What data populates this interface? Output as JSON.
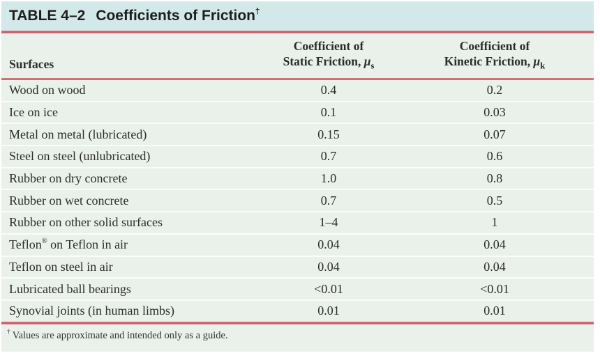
{
  "title": {
    "label": "TABLE 4–2",
    "subtitle": "Coefficients of Friction",
    "dagger": "†"
  },
  "header": {
    "surfaces": "Surfaces",
    "static": {
      "line1": "Coefficient of",
      "line2": "Static Friction,",
      "mu": "μ",
      "sub": "s"
    },
    "kinetic": {
      "line1": "Coefficient of",
      "line2": "Kinetic Friction,",
      "mu": "μ",
      "sub": "k"
    }
  },
  "rows": [
    {
      "pre": "Wood on wood",
      "sup": "",
      "post": "",
      "static": "0.4",
      "kinetic": "0.2"
    },
    {
      "pre": "Ice on ice",
      "sup": "",
      "post": "",
      "static": "0.1",
      "kinetic": "0.03"
    },
    {
      "pre": "Metal on metal (lubricated)",
      "sup": "",
      "post": "",
      "static": "0.15",
      "kinetic": "0.07"
    },
    {
      "pre": "Steel on steel (unlubricated)",
      "sup": "",
      "post": "",
      "static": "0.7",
      "kinetic": "0.6"
    },
    {
      "pre": "Rubber on dry concrete",
      "sup": "",
      "post": "",
      "static": "1.0",
      "kinetic": "0.8"
    },
    {
      "pre": "Rubber on wet concrete",
      "sup": "",
      "post": "",
      "static": "0.7",
      "kinetic": "0.5"
    },
    {
      "pre": "Rubber on other solid surfaces",
      "sup": "",
      "post": "",
      "static": "1–4",
      "kinetic": "1"
    },
    {
      "pre": "Teflon",
      "sup": "®",
      "post": " on Teflon in air",
      "static": "0.04",
      "kinetic": "0.04"
    },
    {
      "pre": "Teflon on steel in air",
      "sup": "",
      "post": "",
      "static": "0.04",
      "kinetic": "0.04"
    },
    {
      "pre": "Lubricated ball bearings",
      "sup": "",
      "post": "",
      "static": "<0.01",
      "kinetic": "<0.01"
    },
    {
      "pre": "Synovial joints (in human limbs)",
      "sup": "",
      "post": "",
      "static": "0.01",
      "kinetic": "0.01"
    }
  ],
  "footnote": {
    "dagger": "†",
    "text": "Values are approximate and intended only as a guide."
  },
  "colors": {
    "title_bg": "#d2e8e9",
    "body_bg": "#e9f1ea",
    "rule_red": "#c95d68",
    "separator": "#fafcfa"
  },
  "chart_data": {
    "type": "table",
    "title": "TABLE 4–2 Coefficients of Friction",
    "columns": [
      "Surfaces",
      "Coefficient of Static Friction, μs",
      "Coefficient of Kinetic Friction, μk"
    ],
    "rows": [
      [
        "Wood on wood",
        "0.4",
        "0.2"
      ],
      [
        "Ice on ice",
        "0.1",
        "0.03"
      ],
      [
        "Metal on metal (lubricated)",
        "0.15",
        "0.07"
      ],
      [
        "Steel on steel (unlubricated)",
        "0.7",
        "0.6"
      ],
      [
        "Rubber on dry concrete",
        "1.0",
        "0.8"
      ],
      [
        "Rubber on wet concrete",
        "0.7",
        "0.5"
      ],
      [
        "Rubber on other solid surfaces",
        "1–4",
        "1"
      ],
      [
        "Teflon® on Teflon in air",
        "0.04",
        "0.04"
      ],
      [
        "Teflon on steel in air",
        "0.04",
        "0.04"
      ],
      [
        "Lubricated ball bearings",
        "<0.01",
        "<0.01"
      ],
      [
        "Synovial joints (in human limbs)",
        "0.01",
        "0.01"
      ]
    ],
    "footnote": "† Values are approximate and intended only as a guide."
  }
}
